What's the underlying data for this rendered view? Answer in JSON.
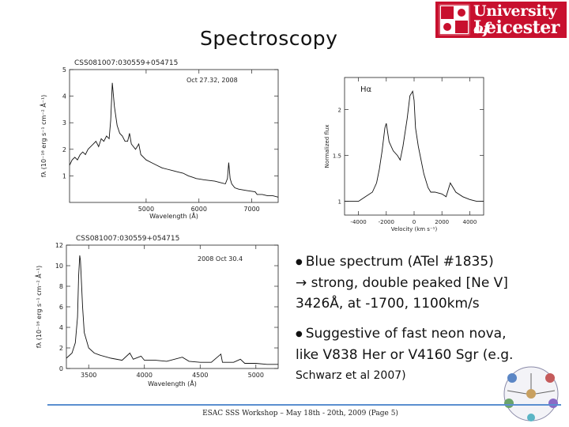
{
  "slide": {
    "title": "Spectroscopy",
    "logo": {
      "line1": "University",
      "line1b": "of",
      "line2": "Leicester"
    },
    "footer": "ESAC SSS Workshop – May 18th - 20th, 2009 (Page 5)"
  },
  "bullets": [
    {
      "text": "Blue spectrum (ATel #1835)"
    },
    {
      "text": "→ strong, double peaked [Ne V]"
    },
    {
      "text": "3426Å, at -1700, 1100km/s"
    },
    {
      "text": "Suggestive of fast neon nova,"
    },
    {
      "text": "like V838 Her or V4160 Sgr (e.g."
    },
    {
      "text": "Schwarz et al 2007)"
    }
  ],
  "chart_data": [
    {
      "type": "line",
      "title": "CSS081007:030559+054715",
      "annotation": "Oct 27.32, 2008",
      "xlabel": "Wavelength (Å)",
      "ylabel": "fλ (10⁻¹⁶ erg s⁻¹ cm⁻² Å⁻¹)",
      "xlim": [
        3550,
        7500
      ],
      "ylim": [
        0,
        5
      ],
      "xticks": [
        5000,
        6000,
        7000
      ],
      "yticks": [
        1,
        2,
        3,
        4,
        5
      ],
      "x": [
        3550,
        3600,
        3650,
        3700,
        3750,
        3800,
        3850,
        3900,
        3950,
        4000,
        4050,
        4100,
        4150,
        4200,
        4250,
        4300,
        4330,
        4360,
        4400,
        4450,
        4500,
        4550,
        4600,
        4650,
        4686,
        4720,
        4800,
        4860,
        4900,
        5000,
        5100,
        5200,
        5300,
        5400,
        5500,
        5600,
        5700,
        5800,
        5876,
        5950,
        6100,
        6300,
        6400,
        6500,
        6540,
        6563,
        6590,
        6620,
        6678,
        6750,
        6900,
        7065,
        7100,
        7200,
        7300,
        7400,
        7500
      ],
      "y": [
        1.4,
        1.6,
        1.7,
        1.6,
        1.8,
        1.9,
        1.8,
        2.0,
        2.1,
        2.2,
        2.3,
        2.1,
        2.4,
        2.3,
        2.5,
        2.4,
        3.1,
        4.5,
        3.6,
        2.9,
        2.6,
        2.5,
        2.3,
        2.3,
        2.6,
        2.2,
        2.0,
        2.2,
        1.8,
        1.6,
        1.5,
        1.4,
        1.3,
        1.25,
        1.2,
        1.15,
        1.1,
        1.0,
        0.95,
        0.9,
        0.85,
        0.8,
        0.75,
        0.7,
        0.9,
        1.5,
        0.9,
        0.7,
        0.55,
        0.5,
        0.45,
        0.4,
        0.3,
        0.3,
        0.25,
        0.25,
        0.2
      ]
    },
    {
      "type": "line",
      "title": "Hα",
      "xlabel": "Velocity (km s⁻¹)",
      "ylabel": "Normalized flux",
      "xlim": [
        -5000,
        5000
      ],
      "ylim": [
        0.85,
        2.35
      ],
      "xticks": [
        -4000,
        -2000,
        0,
        2000,
        4000
      ],
      "yticks": [
        1,
        1.5,
        2
      ],
      "x": [
        -5000,
        -4500,
        -4000,
        -3500,
        -3000,
        -2700,
        -2500,
        -2300,
        -2100,
        -2000,
        -1800,
        -1500,
        -1200,
        -1000,
        -800,
        -500,
        -300,
        -100,
        0,
        100,
        300,
        500,
        700,
        1000,
        1200,
        1500,
        2000,
        2300,
        2600,
        3000,
        3500,
        4000,
        4500,
        5000
      ],
      "y": [
        1.0,
        1.0,
        1.0,
        1.05,
        1.1,
        1.2,
        1.35,
        1.55,
        1.8,
        1.85,
        1.65,
        1.55,
        1.5,
        1.45,
        1.6,
        1.9,
        2.15,
        2.2,
        2.1,
        1.8,
        1.6,
        1.45,
        1.3,
        1.15,
        1.1,
        1.1,
        1.08,
        1.05,
        1.2,
        1.1,
        1.05,
        1.02,
        1.0,
        1.0
      ]
    },
    {
      "type": "line",
      "title": "CSS081007:030559+054715",
      "annotation": "2008 Oct 30.4",
      "xlabel": "Wavelength (Å)",
      "ylabel": "fλ (10⁻¹⁶ erg s⁻¹ cm⁻² Å⁻¹)",
      "xlim": [
        3300,
        5200
      ],
      "ylim": [
        0,
        12
      ],
      "xticks": [
        3500,
        4000,
        4500,
        5000
      ],
      "yticks": [
        0,
        2,
        4,
        6,
        8,
        10,
        12
      ],
      "x": [
        3300,
        3350,
        3380,
        3400,
        3410,
        3420,
        3426,
        3435,
        3445,
        3460,
        3500,
        3550,
        3600,
        3700,
        3800,
        3869,
        3900,
        3970,
        4000,
        4100,
        4200,
        4340,
        4400,
        4500,
        4600,
        4686,
        4700,
        4800,
        4861,
        4900,
        5000,
        5100,
        5200
      ],
      "y": [
        1.0,
        1.5,
        2.5,
        5.0,
        9.0,
        11.0,
        10.5,
        8.5,
        6.0,
        3.5,
        2.0,
        1.5,
        1.3,
        1.0,
        0.8,
        1.5,
        0.9,
        1.2,
        0.8,
        0.8,
        0.7,
        1.1,
        0.7,
        0.6,
        0.6,
        1.4,
        0.6,
        0.6,
        0.9,
        0.5,
        0.5,
        0.4,
        0.4
      ]
    }
  ]
}
